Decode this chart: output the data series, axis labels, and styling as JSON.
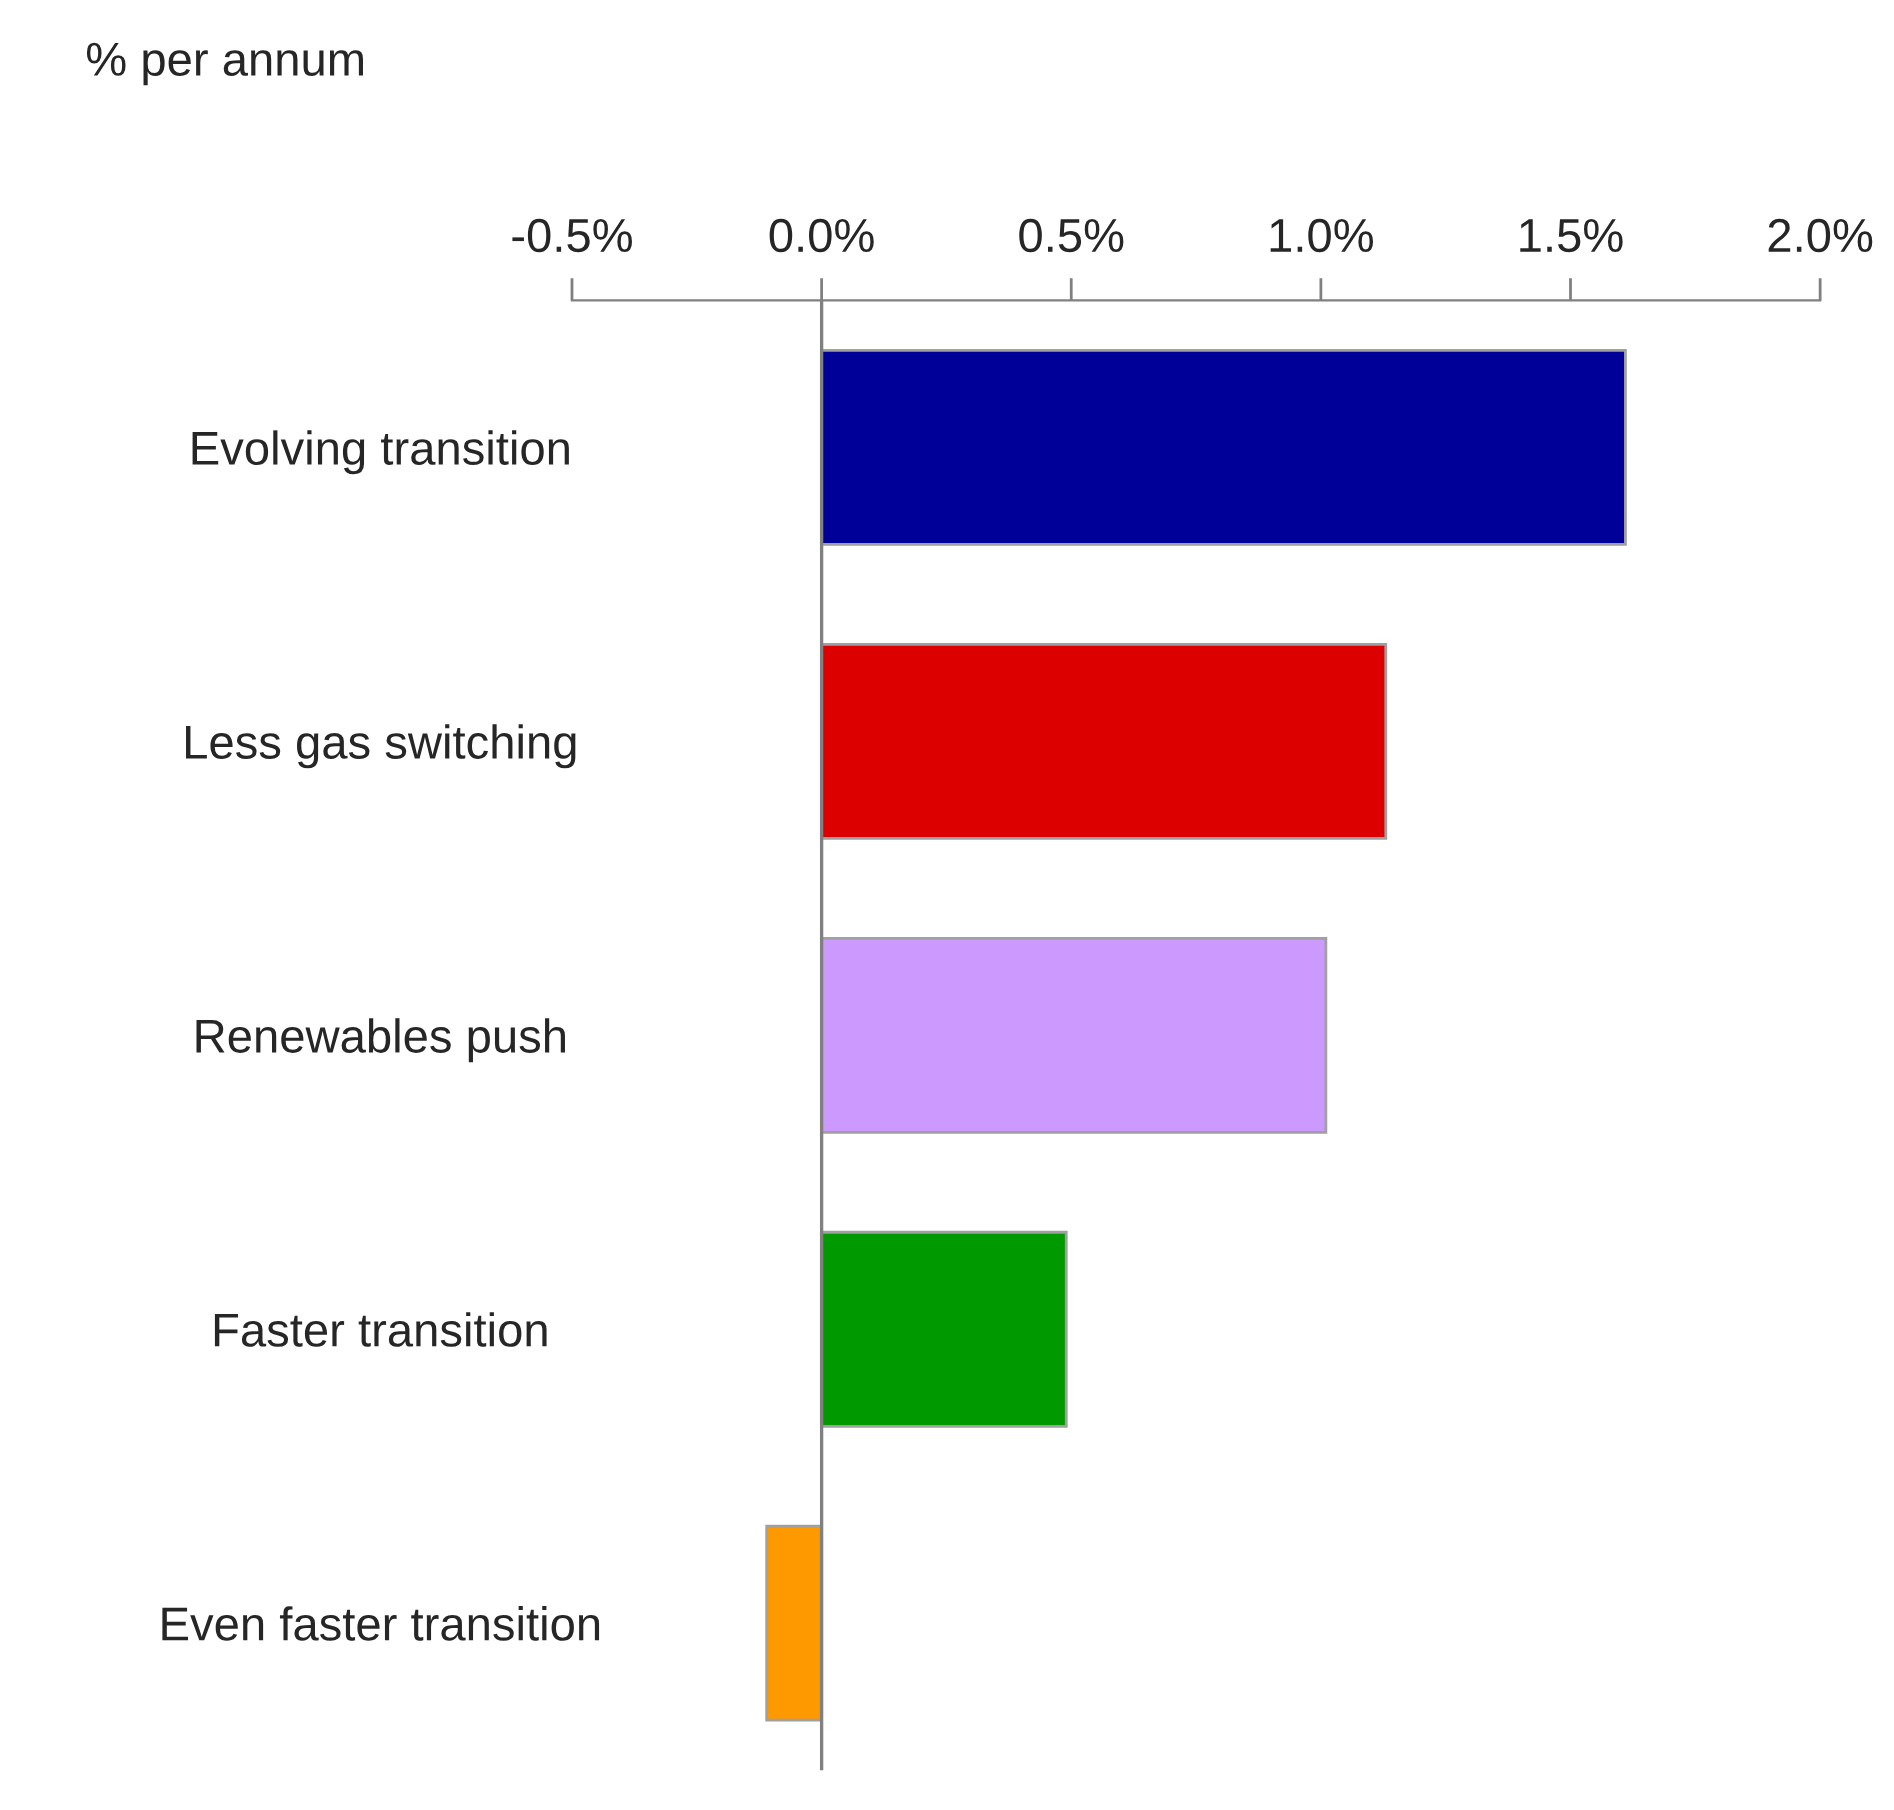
{
  "chart_data": {
    "type": "bar",
    "orientation": "horizontal",
    "xlabel": "% per annum",
    "categories": [
      "Evolving transition",
      "Less gas switching",
      "Renewables push",
      "Faster transition",
      "Even faster transition"
    ],
    "values": [
      1.61,
      1.13,
      1.01,
      0.49,
      -0.11
    ],
    "colors": [
      "#000099",
      "#dd0000",
      "#cc99ff",
      "#009900",
      "#ff9900"
    ],
    "xlim": [
      -0.5,
      2.0
    ],
    "xticks": [
      {
        "value": -0.5,
        "label": "-0.5%"
      },
      {
        "value": 0.0,
        "label": "0.0%"
      },
      {
        "value": 0.5,
        "label": "0.5%"
      },
      {
        "value": 1.0,
        "label": "1.0%"
      },
      {
        "value": 1.5,
        "label": "1.5%"
      },
      {
        "value": 2.0,
        "label": "2.0%"
      }
    ],
    "ref_lines": [
      {
        "axis": "x",
        "value": 0,
        "color": "#808080"
      }
    ],
    "grid": false,
    "legend": false
  }
}
